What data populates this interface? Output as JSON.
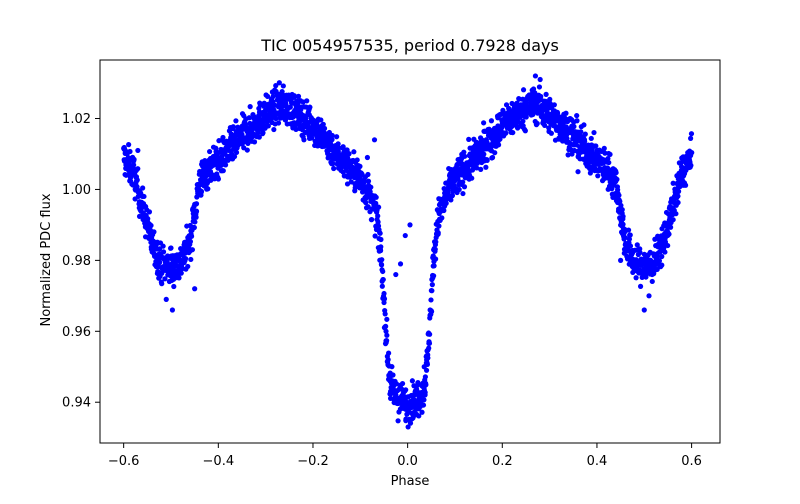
{
  "chart_data": {
    "type": "scatter",
    "title": "TIC 0054957535, period 0.7928 days",
    "xlabel": "Phase",
    "ylabel": "Normalized PDC flux",
    "xlim": [
      -0.65,
      0.66
    ],
    "ylim": [
      0.9285,
      1.0365
    ],
    "grid": false,
    "legend": "none",
    "x_ticks": [
      -0.6,
      -0.4,
      -0.2,
      0.0,
      0.2,
      0.4,
      0.6
    ],
    "x_tick_labels": [
      "−0.6",
      "−0.4",
      "−0.2",
      "0.0",
      "0.2",
      "0.4",
      "0.6"
    ],
    "y_ticks": [
      0.94,
      0.96,
      0.98,
      1.0,
      1.02
    ],
    "y_tick_labels": [
      "0.94",
      "0.96",
      "0.98",
      "1.00",
      "1.02"
    ],
    "marker_color": "#0000ff",
    "phase_range": [
      -0.6,
      0.6
    ],
    "light_curve": {
      "x": [
        -0.6,
        -0.58,
        -0.56,
        -0.54,
        -0.52,
        -0.5,
        -0.48,
        -0.46,
        -0.44,
        -0.42,
        -0.4,
        -0.35,
        -0.3,
        -0.27,
        -0.25,
        -0.2,
        -0.15,
        -0.1,
        -0.08,
        -0.065,
        -0.055,
        -0.048,
        -0.042,
        -0.035,
        -0.02,
        0.0,
        0.02,
        0.035,
        0.042,
        0.048,
        0.055,
        0.065,
        0.08,
        0.1,
        0.15,
        0.2,
        0.25,
        0.27,
        0.3,
        0.35,
        0.4,
        0.42,
        0.44,
        0.46,
        0.48,
        0.5,
        0.52,
        0.54,
        0.56,
        0.58,
        0.6
      ],
      "y": [
        1.009,
        1.005,
        0.995,
        0.985,
        0.979,
        0.978,
        0.979,
        0.985,
        1.002,
        1.006,
        1.008,
        1.015,
        1.021,
        1.024,
        1.023,
        1.018,
        1.01,
        1.003,
        0.998,
        0.992,
        0.98,
        0.965,
        0.952,
        0.944,
        0.941,
        0.939,
        0.941,
        0.944,
        0.952,
        0.965,
        0.98,
        0.992,
        0.998,
        1.003,
        1.01,
        1.018,
        1.023,
        1.024,
        1.021,
        1.015,
        1.008,
        1.006,
        1.002,
        0.985,
        0.979,
        0.978,
        0.979,
        0.985,
        0.995,
        1.005,
        1.009
      ],
      "scatter_width": 0.0025
    },
    "outliers": {
      "x": [
        -0.497,
        -0.45,
        -0.51,
        -0.5,
        -0.07,
        -0.085,
        -0.025,
        -0.015,
        -0.005,
        0.005,
        -0.43,
        -0.57,
        0.5,
        0.51,
        0.45,
        0.36,
        0.54,
        0.57,
        0.27,
        0.23,
        0.035,
        0.04,
        0.28
      ],
      "y": [
        0.966,
        0.972,
        0.969,
        0.9835,
        1.014,
        1.009,
        0.976,
        0.979,
        0.987,
        0.99,
        1.001,
        1.011,
        0.966,
        0.97,
        0.98,
        1.005,
        0.983,
        1.0,
        1.032,
        1.02,
        0.95,
        0.949,
        1.031
      ]
    }
  }
}
